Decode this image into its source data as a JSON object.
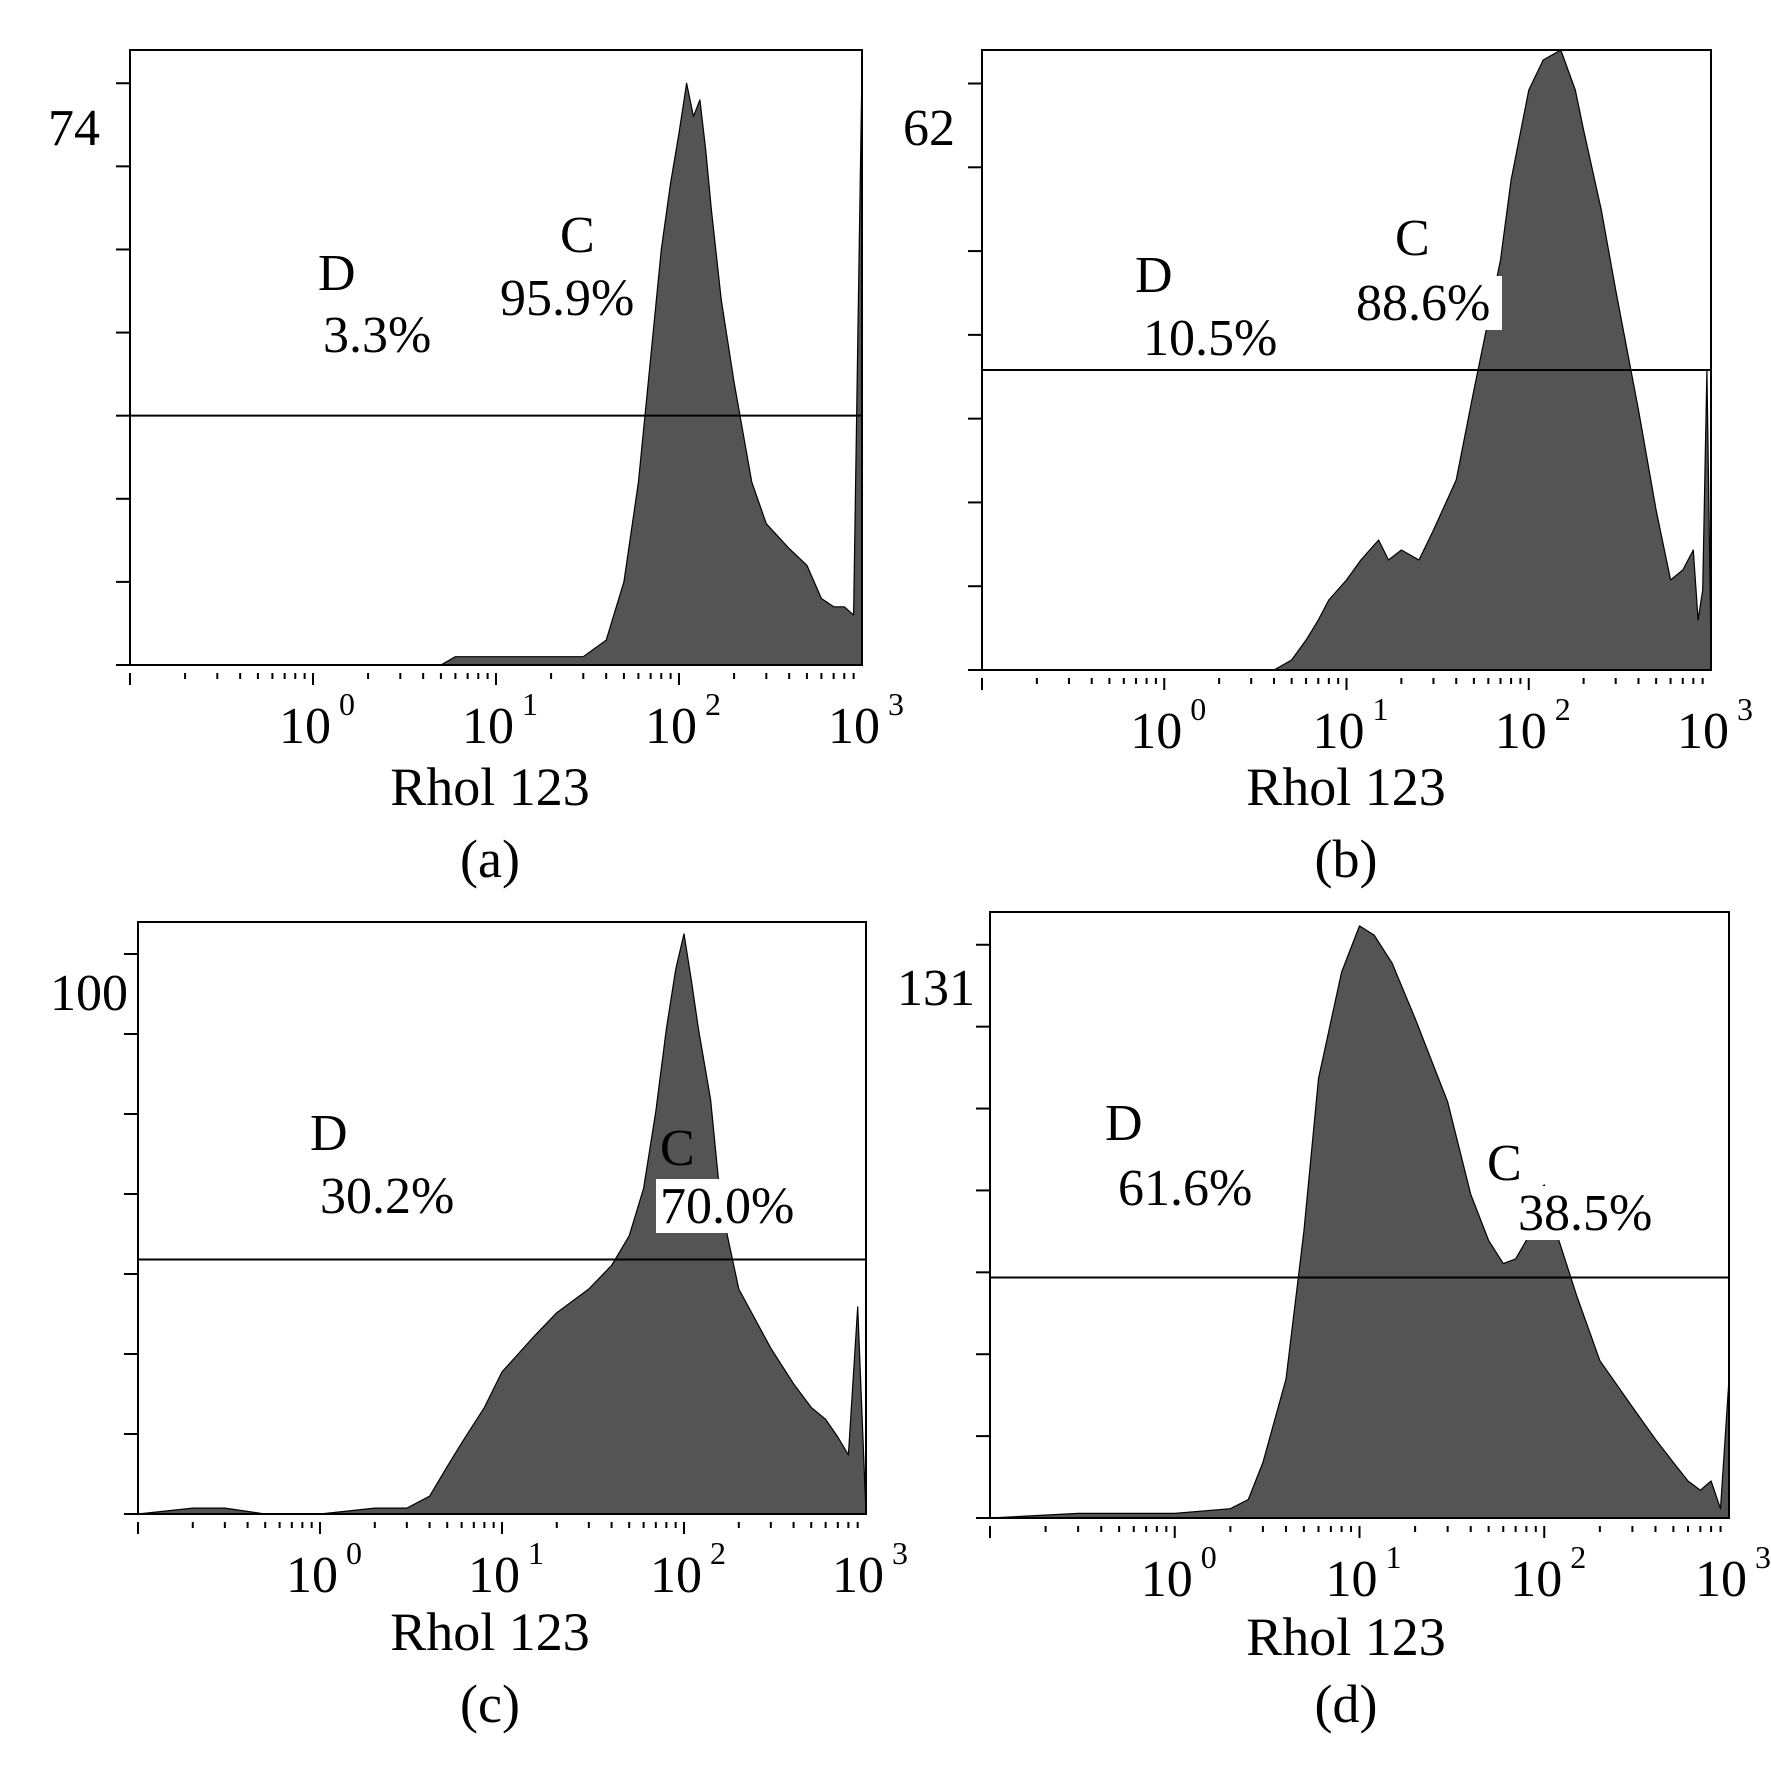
{
  "figure": {
    "panels": [
      {
        "panel_label": "(a)",
        "xlabel": "Rhol 123",
        "ymax_label": "74",
        "x_tick_labels": [
          {
            "base": "10",
            "exp": "0"
          },
          {
            "base": "10",
            "exp": "1"
          },
          {
            "base": "10",
            "exp": "2"
          },
          {
            "base": "10",
            "exp": "3"
          }
        ],
        "gate_left": {
          "name": "D",
          "percent": "3.3%"
        },
        "gate_right": {
          "name": "C",
          "percent": "95.9%"
        }
      },
      {
        "panel_label": "(b)",
        "xlabel": "Rhol 123",
        "ymax_label": "62",
        "x_tick_labels": [
          {
            "base": "10",
            "exp": "0"
          },
          {
            "base": "10",
            "exp": "1"
          },
          {
            "base": "10",
            "exp": "2"
          },
          {
            "base": "10",
            "exp": "3"
          }
        ],
        "gate_left": {
          "name": "D",
          "percent": "10.5%"
        },
        "gate_right": {
          "name": "C",
          "percent": "88.6%"
        }
      },
      {
        "panel_label": "(c)",
        "xlabel": "Rhol 123",
        "ymax_label": "100",
        "x_tick_labels": [
          {
            "base": "10",
            "exp": "0"
          },
          {
            "base": "10",
            "exp": "1"
          },
          {
            "base": "10",
            "exp": "2"
          },
          {
            "base": "10",
            "exp": "3"
          }
        ],
        "gate_left": {
          "name": "D",
          "percent": "30.2%"
        },
        "gate_right": {
          "name": "C",
          "percent": "70.0%"
        }
      },
      {
        "panel_label": "(d)",
        "xlabel": "Rhol 123",
        "ymax_label": "131",
        "x_tick_labels": [
          {
            "base": "10",
            "exp": "0"
          },
          {
            "base": "10",
            "exp": "1"
          },
          {
            "base": "10",
            "exp": "2"
          },
          {
            "base": "10",
            "exp": "3"
          }
        ],
        "gate_left": {
          "name": "D",
          "percent": "61.6%"
        },
        "gate_right": {
          "name": "C",
          "percent": "38.5%"
        }
      }
    ]
  },
  "chart_data": [
    {
      "type": "area",
      "xscale": "log",
      "xlim": [
        0.1,
        1000
      ],
      "ylim": [
        0,
        74
      ],
      "color": "#545454",
      "grid": false,
      "series": [
        {
          "x": [
            0.1,
            1,
            5,
            6,
            10,
            20,
            30,
            40,
            50,
            60,
            70,
            80,
            90,
            100,
            110,
            120,
            130,
            140,
            150,
            170,
            200,
            250,
            300,
            400,
            500,
            600,
            700,
            800,
            900,
            950,
            1000
          ],
          "y": [
            0,
            0,
            0,
            1,
            1,
            1,
            1,
            3,
            10,
            22,
            37,
            50,
            58,
            64,
            70,
            66,
            68,
            62,
            55,
            44,
            34,
            22,
            17,
            14,
            12,
            8,
            7,
            7,
            6,
            40,
            72
          ]
        }
      ],
      "gate_threshold": 30
    },
    {
      "type": "area",
      "xscale": "log",
      "xlim": [
        0.1,
        1000
      ],
      "ylim": [
        0,
        62
      ],
      "color": "#545454",
      "grid": false,
      "series": [
        {
          "x": [
            0.1,
            4,
            5,
            6,
            7,
            8,
            10,
            12,
            15,
            17,
            20,
            25,
            30,
            40,
            50,
            60,
            70,
            80,
            100,
            120,
            150,
            180,
            200,
            250,
            300,
            400,
            500,
            600,
            700,
            800,
            850,
            900,
            950,
            1000
          ],
          "y": [
            0,
            0,
            1,
            3,
            5,
            7,
            9,
            11,
            13,
            11,
            12,
            11,
            14,
            19,
            28,
            35,
            41,
            49,
            58,
            61,
            62,
            58,
            54,
            46,
            38,
            26,
            16,
            9,
            10,
            12,
            5,
            8,
            30,
            2
          ]
        }
      ],
      "gate_threshold": 30
    },
    {
      "type": "area",
      "xscale": "log",
      "xlim": [
        0.1,
        1000
      ],
      "ylim": [
        0,
        100
      ],
      "color": "#545454",
      "grid": false,
      "series": [
        {
          "x": [
            0.1,
            0.2,
            0.3,
            0.5,
            1,
            2,
            3,
            4,
            5,
            6,
            8,
            10,
            15,
            20,
            30,
            40,
            50,
            60,
            70,
            80,
            90,
            100,
            110,
            120,
            140,
            160,
            200,
            300,
            400,
            500,
            600,
            700,
            800,
            900,
            1000
          ],
          "y": [
            0,
            1,
            1,
            0,
            0,
            1,
            1,
            3,
            8,
            12,
            18,
            24,
            30,
            34,
            38,
            42,
            47,
            55,
            68,
            82,
            92,
            98,
            90,
            82,
            70,
            52,
            38,
            28,
            22,
            18,
            16,
            13,
            10,
            35,
            0
          ]
        }
      ],
      "gate_threshold": 43
    },
    {
      "type": "area",
      "xscale": "log",
      "xlim": [
        0.1,
        1000
      ],
      "ylim": [
        0,
        131
      ],
      "color": "#545454",
      "grid": false,
      "series": [
        {
          "x": [
            0.1,
            0.3,
            1,
            2,
            2.5,
            3,
            4,
            5,
            6,
            8,
            10,
            12,
            15,
            20,
            30,
            40,
            50,
            60,
            70,
            80,
            90,
            100,
            120,
            150,
            200,
            300,
            400,
            500,
            600,
            700,
            800,
            900,
            1000
          ],
          "y": [
            0,
            1,
            1,
            2,
            4,
            12,
            30,
            62,
            95,
            118,
            128,
            126,
            120,
            108,
            90,
            70,
            60,
            55,
            56,
            60,
            70,
            72,
            60,
            48,
            34,
            24,
            17,
            12,
            8,
            6,
            8,
            2,
            30
          ]
        }
      ],
      "gate_threshold": 52
    }
  ]
}
